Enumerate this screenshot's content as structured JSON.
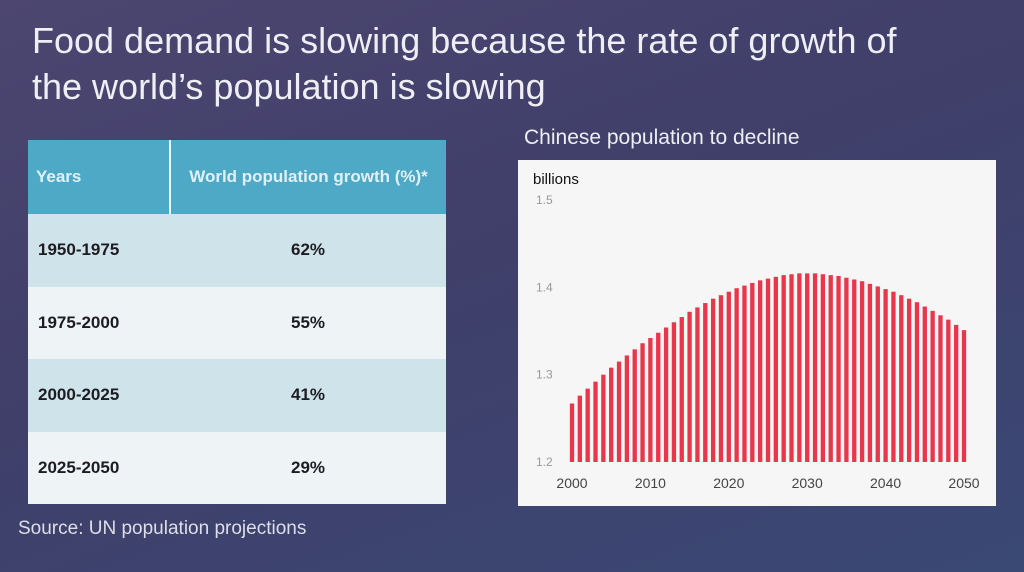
{
  "slide": {
    "title_line1": "Food demand is slowing because the rate of growth of",
    "title_line2": "the world’s population is slowing",
    "source": "Source: UN population projections"
  },
  "table": {
    "headers": [
      "Years",
      "World population growth (%)*"
    ],
    "rows": [
      {
        "years": "1950-1975",
        "growth": "62%"
      },
      {
        "years": "1975-2000",
        "growth": "55%"
      },
      {
        "years": "2000-2025",
        "growth": "41%"
      },
      {
        "years": "2025-2050",
        "growth": "29%"
      }
    ]
  },
  "chart_data": {
    "type": "bar",
    "title": "Chinese population to decline",
    "ylabel": "billions",
    "xlabel": "",
    "ylim": [
      1.2,
      1.5
    ],
    "yticks": [
      1.2,
      1.3,
      1.4,
      1.5
    ],
    "xticks": [
      2000,
      2010,
      2020,
      2030,
      2040,
      2050
    ],
    "bar_color": "#e8374a",
    "x": [
      2000,
      2001,
      2002,
      2003,
      2004,
      2005,
      2006,
      2007,
      2008,
      2009,
      2010,
      2011,
      2012,
      2013,
      2014,
      2015,
      2016,
      2017,
      2018,
      2019,
      2020,
      2021,
      2022,
      2023,
      2024,
      2025,
      2026,
      2027,
      2028,
      2029,
      2030,
      2031,
      2032,
      2033,
      2034,
      2035,
      2036,
      2037,
      2038,
      2039,
      2040,
      2041,
      2042,
      2043,
      2044,
      2045,
      2046,
      2047,
      2048,
      2049,
      2050
    ],
    "values": [
      1.267,
      1.276,
      1.284,
      1.292,
      1.3,
      1.308,
      1.315,
      1.322,
      1.329,
      1.336,
      1.342,
      1.348,
      1.354,
      1.36,
      1.366,
      1.372,
      1.377,
      1.382,
      1.387,
      1.391,
      1.395,
      1.399,
      1.402,
      1.405,
      1.408,
      1.41,
      1.412,
      1.414,
      1.415,
      1.416,
      1.416,
      1.416,
      1.415,
      1.414,
      1.413,
      1.411,
      1.409,
      1.407,
      1.404,
      1.401,
      1.398,
      1.395,
      1.391,
      1.387,
      1.383,
      1.378,
      1.373,
      1.368,
      1.363,
      1.357,
      1.351
    ]
  }
}
